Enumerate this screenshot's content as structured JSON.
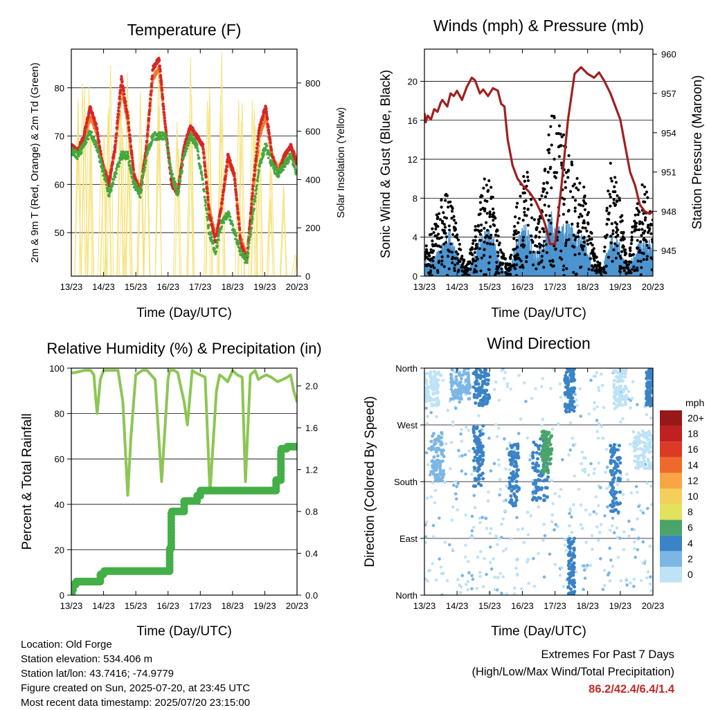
{
  "chart_data": [
    {
      "type": "line",
      "title": "Temperature (F)",
      "xlabel": "Time (Day/UTC)",
      "ylabel": "2m & 9m T (Red, Orange) & 2m Td (Green)",
      "y2label": "Solar Insolation (Yellow)",
      "x_ticks": [
        "13/23",
        "14/23",
        "15/23",
        "16/23",
        "17/23",
        "18/23",
        "19/23",
        "20/23"
      ],
      "ylim": [
        41,
        88
      ],
      "y_ticks": [
        50,
        60,
        70,
        80
      ],
      "y2lim": [
        0,
        940
      ],
      "y2_ticks": [
        0,
        200,
        400,
        600,
        800
      ],
      "grid": "horizontal",
      "series": [
        {
          "color": "#d62728",
          "axis": "left",
          "values": [
            68,
            67,
            70,
            76,
            72,
            64,
            60,
            68,
            82,
            74,
            62,
            58,
            68,
            84,
            86,
            72,
            60,
            58,
            68,
            72,
            70,
            68,
            54,
            48,
            56,
            66,
            62,
            48,
            44,
            60,
            72,
            76,
            66,
            62,
            66,
            68,
            64
          ]
        },
        {
          "color": "#f07f2a",
          "axis": "left",
          "values": [
            68,
            67,
            69,
            74,
            71,
            64,
            61,
            67,
            80,
            73,
            62,
            59,
            68,
            82,
            84,
            72,
            61,
            59,
            68,
            71,
            70,
            68,
            55,
            49,
            56,
            65,
            62,
            49,
            45,
            59,
            70,
            74,
            66,
            63,
            66,
            68,
            65
          ]
        },
        {
          "color": "#44a83c",
          "axis": "left",
          "values": [
            67,
            66,
            68,
            71,
            68,
            63,
            58,
            62,
            66,
            66,
            60,
            58,
            66,
            70,
            70,
            70,
            62,
            58,
            66,
            70,
            68,
            60,
            50,
            46,
            52,
            54,
            50,
            46,
            44,
            54,
            64,
            68,
            64,
            62,
            64,
            66,
            62
          ]
        },
        {
          "color": "#f6e27a",
          "axis": "right",
          "values": [
            0,
            700,
            800,
            820,
            0,
            600,
            880,
            0,
            900,
            850,
            0,
            780,
            870,
            0,
            900,
            0,
            0,
            880,
            0,
            920,
            0,
            0,
            850,
            0,
            900,
            0,
            0,
            820,
            0,
            760,
            600,
            0,
            450,
            0,
            380,
            0,
            120
          ]
        }
      ]
    },
    {
      "type": "scatter",
      "title": "Winds (mph) & Pressure (mb)",
      "xlabel": "Time (Day/UTC)",
      "ylabel": "Sonic Wind & Gust (Blue, Black)",
      "y2label": "Station Pressure (Maroon)",
      "x_ticks": [
        "13/23",
        "14/23",
        "15/23",
        "16/23",
        "17/23",
        "18/23",
        "19/23",
        "20/23"
      ],
      "ylim": [
        0,
        23.3
      ],
      "y_ticks": [
        0,
        4,
        8,
        12,
        16,
        20
      ],
      "y2lim": [
        943.05,
        960.38
      ],
      "y2_ticks": [
        945,
        948,
        951,
        954,
        957,
        960
      ],
      "grid": "horizontal",
      "wind_envelope": {
        "wind_max": [
          1.5,
          2.0,
          3.5,
          4.5,
          2.0,
          0.5,
          2.5,
          5.0,
          4.5,
          1.0,
          0.5,
          4.0,
          5.5,
          2.5,
          3.5,
          6.5,
          5.0,
          5.5,
          4.5,
          4.0,
          1.0,
          0.5,
          4.5,
          3.5,
          0.5,
          3.0,
          4.0,
          3.5
        ],
        "gust_max": [
          3,
          5,
          8,
          9,
          4,
          1,
          5,
          10,
          10,
          3,
          1,
          8,
          12,
          6,
          9,
          17,
          16,
          13,
          11,
          9,
          3,
          1,
          12,
          9,
          1,
          8,
          10,
          6
        ]
      },
      "pressure": {
        "x": [
          0,
          0.04,
          0.1,
          0.2,
          0.3,
          0.4,
          0.5,
          0.55,
          0.7,
          0.8,
          0.9,
          1.0,
          1.15,
          1.3,
          1.45,
          1.55,
          1.7,
          1.8,
          1.95,
          2.1,
          2.25,
          2.35,
          2.45,
          2.55,
          2.7,
          2.85,
          3.0,
          3.2,
          3.4,
          3.55,
          3.7,
          3.85,
          4.0,
          4.2,
          4.4,
          4.6,
          4.8,
          5.0,
          5.2,
          5.35,
          5.5,
          5.7,
          5.85,
          6.0,
          6.15,
          6.3,
          6.45,
          6.6,
          6.75,
          6.9,
          7.0
        ],
        "values": [
          955.5,
          954.8,
          955.3,
          955.0,
          955.8,
          955.6,
          956.3,
          956.5,
          956.0,
          957.0,
          956.8,
          957.2,
          956.5,
          957.5,
          958.2,
          958.0,
          957.0,
          957.3,
          956.8,
          957.4,
          957.2,
          956.2,
          956.0,
          953.5,
          951.5,
          950.5,
          950.0,
          949.5,
          948.8,
          948.0,
          947.0,
          945.5,
          945.5,
          950.0,
          955.0,
          958.5,
          959.0,
          958.5,
          958.2,
          958.6,
          958.0,
          957.0,
          956.0,
          955.0,
          953.0,
          951.0,
          950.0,
          948.5,
          948.0,
          947.8,
          948.0
        ]
      }
    },
    {
      "type": "line",
      "title": "Relative Humidity (%) & Precipitation (in)",
      "xlabel": "Time (Day/UTC)",
      "ylabel": "Percent & Total Rainfall",
      "x_ticks": [
        "13/23",
        "14/23",
        "15/23",
        "16/23",
        "17/23",
        "18/23",
        "19/23",
        "20/23"
      ],
      "ylim": [
        0,
        100
      ],
      "y_ticks": [
        0,
        20,
        40,
        60,
        80,
        100
      ],
      "y2lim": [
        0,
        2.17
      ],
      "y2_ticks": [
        "0.0",
        "0.4",
        "0.8",
        "1.2",
        "1.6",
        "2.0"
      ],
      "grid": "horizontal",
      "series": [
        {
          "color": "#8dc653",
          "axis": "left",
          "x": [
            0,
            0.1,
            0.4,
            0.6,
            0.7,
            0.75,
            0.8,
            0.9,
            1.0,
            1.2,
            1.45,
            1.6,
            1.75,
            1.85,
            2.0,
            2.2,
            2.35,
            2.6,
            2.8,
            3.0,
            3.05,
            3.2,
            3.3,
            3.5,
            3.6,
            3.75,
            3.85,
            4.0,
            4.15,
            4.3,
            4.5,
            4.6,
            4.7,
            4.85,
            5.0,
            5.15,
            5.3,
            5.4,
            5.55,
            5.7,
            5.8,
            5.9,
            6.05,
            6.2,
            6.4,
            6.55,
            6.7,
            6.8,
            6.9,
            7.0
          ],
          "values": [
            98,
            98,
            99,
            99,
            97,
            88,
            80,
            95,
            99,
            99,
            99,
            85,
            44,
            70,
            97,
            99,
            99,
            95,
            50,
            95,
            99,
            99,
            98,
            85,
            75,
            99,
            98,
            97,
            96,
            45,
            90,
            97,
            96,
            94,
            99,
            97,
            96,
            50,
            97,
            99,
            95,
            96,
            97,
            96,
            94,
            95,
            96,
            97,
            90,
            85
          ]
        },
        {
          "color": "#44ae48",
          "axis": "right",
          "marker": "circle",
          "x": [
            0,
            0.02,
            0.05,
            0.15,
            0.8,
            0.9,
            1.0,
            2.5,
            3.0,
            3.05,
            3.1,
            3.4,
            3.5,
            3.9,
            4.0,
            5.0,
            6.0,
            6.3,
            6.35,
            6.5,
            6.7,
            7.0
          ],
          "values": [
            0.0,
            0.05,
            0.1,
            0.13,
            0.13,
            0.2,
            0.23,
            0.23,
            0.23,
            0.45,
            0.8,
            0.8,
            0.9,
            0.95,
            1.0,
            1.0,
            1.0,
            1.0,
            1.1,
            1.4,
            1.42,
            1.42
          ]
        }
      ]
    },
    {
      "type": "scatter",
      "title": "Wind Direction",
      "xlabel": "Time (Day/UTC)",
      "ylabel": "Direction (Colored By Speed)",
      "x_ticks": [
        "13/23",
        "14/23",
        "15/23",
        "16/23",
        "17/23",
        "18/23",
        "19/23",
        "20/23"
      ],
      "y_ticks": [
        "North",
        "East",
        "South",
        "West",
        "North"
      ],
      "ylim": [
        0,
        360
      ],
      "grid": "horizontal",
      "colorbar": {
        "unit": "mph",
        "labels": [
          "20+",
          "18",
          "16",
          "14",
          "12",
          "10",
          "8",
          "6",
          "4",
          "2",
          "0"
        ],
        "colors": [
          "#961818",
          "#c0201f",
          "#dc3a24",
          "#ee6a2c",
          "#f8a644",
          "#f2d05a",
          "#e2e25c",
          "#4ba46a",
          "#3a83c6",
          "#7cb6e4",
          "#bee2f6"
        ]
      },
      "clusters": [
        {
          "x": [
            0.0,
            0.45
          ],
          "dir": [
            300,
            355
          ],
          "color": "#bee2f6"
        },
        {
          "x": [
            0.2,
            0.6
          ],
          "dir": [
            180,
            260
          ],
          "color": "#7cb6e4"
        },
        {
          "x": [
            0.8,
            1.4
          ],
          "dir": [
            310,
            360
          ],
          "color": "#7cb6e4"
        },
        {
          "x": [
            1.5,
            2.0
          ],
          "dir": [
            300,
            360
          ],
          "color": "#3a83c6"
        },
        {
          "x": [
            1.5,
            1.8
          ],
          "dir": [
            170,
            270
          ],
          "color": "#3a83c6"
        },
        {
          "x": [
            2.6,
            2.9
          ],
          "dir": [
            140,
            240
          ],
          "color": "#3a83c6"
        },
        {
          "x": [
            3.3,
            3.8
          ],
          "dir": [
            150,
            250
          ],
          "color": "#3a83c6"
        },
        {
          "x": [
            3.6,
            3.9
          ],
          "dir": [
            190,
            260
          ],
          "color": "#4ba46a"
        },
        {
          "x": [
            4.3,
            4.6
          ],
          "dir": [
            290,
            360
          ],
          "color": "#3a83c6"
        },
        {
          "x": [
            4.4,
            4.6
          ],
          "dir": [
            0,
            90
          ],
          "color": "#3a83c6"
        },
        {
          "x": [
            5.7,
            6.0
          ],
          "dir": [
            130,
            240
          ],
          "color": "#3a83c6"
        },
        {
          "x": [
            5.8,
            6.2
          ],
          "dir": [
            300,
            360
          ],
          "color": "#bee2f6"
        },
        {
          "x": [
            6.4,
            7.0
          ],
          "dir": [
            200,
            260
          ],
          "color": "#bee2f6"
        },
        {
          "x": [
            6.8,
            7.0
          ],
          "dir": [
            300,
            360
          ],
          "color": "#3a83c6"
        }
      ]
    }
  ],
  "footer": {
    "location": "Location: Old Forge",
    "elevation": "Station elevation: 534.406 m",
    "latlon": "Station lat/lon: 43.7416; -74.9779",
    "created": "Figure created on Sun, 2025-07-20, at 23:45 UTC",
    "latest": "Most recent data timestamp: 2025/07/20 23:15:00"
  },
  "extremes": {
    "title": "Extremes For Past 7 Days",
    "subtitle": "(High/Low/Max Wind/Total Precipitation)",
    "values": "86.2/42.4/6.4/1.4"
  }
}
